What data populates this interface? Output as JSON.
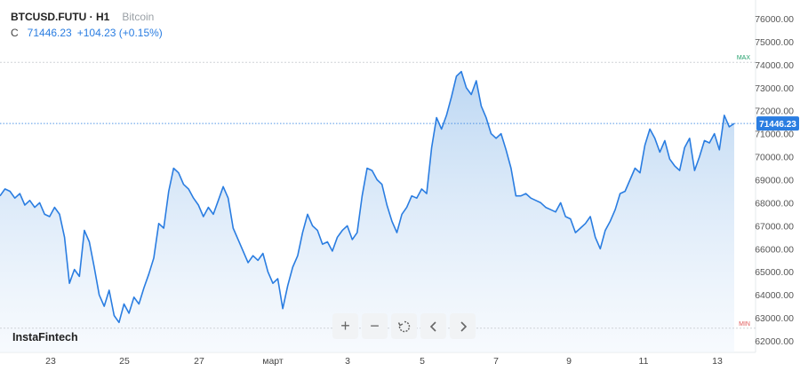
{
  "header": {
    "symbol": "BTCUSD.FUTU · H1",
    "description": "Bitcoin",
    "close_label": "C",
    "price": "71446.23",
    "change": "+104.23 (+0.15%)"
  },
  "logo": "InstaFintech",
  "toolbar": {
    "zoom_in": "+",
    "zoom_out": "−"
  },
  "colors": {
    "line": "#2a7de1",
    "fill_top": "#b9d5f2",
    "fill_bottom": "#f2f7fd",
    "max_label": "#22a06b",
    "min_label": "#e05a5a",
    "price_tag": "#2a7de1"
  },
  "chart_data": {
    "type": "area",
    "title": "",
    "xlabel": "",
    "ylabel": "",
    "ylim": [
      61500,
      76500
    ],
    "y_ticks": [
      "62000.00",
      "63000.00",
      "64000.00",
      "65000.00",
      "66000.00",
      "67000.00",
      "68000.00",
      "69000.00",
      "70000.00",
      "71000.00",
      "72000.00",
      "73000.00",
      "74000.00",
      "75000.00",
      "76000.00"
    ],
    "x_ticks": [
      "23",
      "25",
      "27",
      "март",
      "3",
      "5",
      "7",
      "9",
      "11",
      "13"
    ],
    "last_price_label": "71446.23",
    "max_label": "MAX",
    "min_label": "MIN",
    "max_value": 74100,
    "min_value": 62550,
    "series": [
      {
        "values": [
          68300,
          68600,
          68500,
          68200,
          68400,
          67900,
          68100,
          67800,
          68000,
          67500,
          67400,
          67800,
          67500,
          66500,
          64500,
          65100,
          64800,
          66800,
          66300,
          65200,
          64000,
          63500,
          64200,
          63100,
          62800,
          63600,
          63200,
          63900,
          63600,
          64300,
          64900,
          65600,
          67100,
          66900,
          68500,
          69500,
          69300,
          68800,
          68600,
          68200,
          67900,
          67400,
          67800,
          67500,
          68100,
          68700,
          68200,
          66900,
          66400,
          65900,
          65400,
          65700,
          65500,
          65800,
          65000,
          64500,
          64700,
          63400,
          64400,
          65200,
          65700,
          66700,
          67500,
          67000,
          66800,
          66200,
          66300,
          65900,
          66500,
          66800,
          67000,
          66400,
          66700,
          68300,
          69500,
          69400,
          69000,
          68800,
          67900,
          67200,
          66700,
          67500,
          67800,
          68300,
          68200,
          68600,
          68400,
          70400,
          71700,
          71200,
          71800,
          72600,
          73500,
          73700,
          73000,
          72700,
          73300,
          72200,
          71700,
          71000,
          70800,
          71000,
          70300,
          69500,
          68300,
          68300,
          68400,
          68200,
          68100,
          68000,
          67800,
          67700,
          67600,
          68000,
          67400,
          67300,
          66700,
          66900,
          67100,
          67400,
          66500,
          66000,
          66800,
          67200,
          67700,
          68400,
          68500,
          69000,
          69500,
          69300,
          70500,
          71200,
          70800,
          70200,
          70700,
          69900,
          69600,
          69400,
          70400,
          70800,
          69400,
          70000,
          70700,
          70600,
          71000,
          70300,
          71800,
          71300,
          71446
        ]
      }
    ]
  }
}
